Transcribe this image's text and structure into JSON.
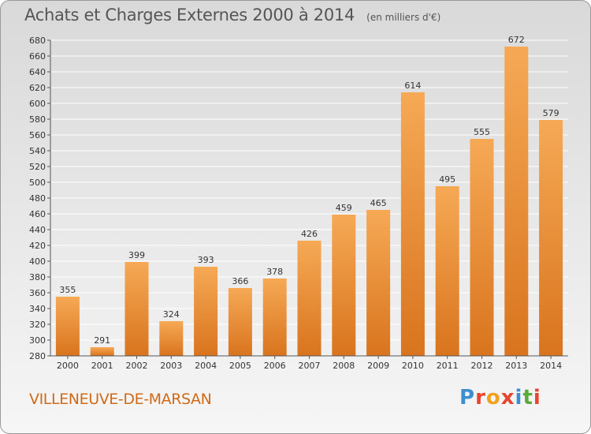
{
  "header": {
    "title": "Achats et Charges Externes 2000 à 2014",
    "subtitle": "(en milliers d'€)"
  },
  "footer": {
    "commune": "VILLENEUVE-DE-MARSAN",
    "brand": "Proxiti",
    "brand_colors": [
      "#3c8fd0",
      "#e8452e",
      "#f2a11e",
      "#e8452e",
      "#3c8fd0",
      "#5aaa3a",
      "#e8452e"
    ]
  },
  "colors": {
    "bar_light": "#f6a955",
    "bar_dark": "#d9741e",
    "grid": "#ffffff",
    "axis": "#555555"
  },
  "chart_data": {
    "type": "bar",
    "title": "Achats et Charges Externes 2000 à 2014",
    "subtitle": "(en milliers d'€)",
    "categories": [
      "2000",
      "2001",
      "2002",
      "2003",
      "2004",
      "2005",
      "2006",
      "2007",
      "2008",
      "2009",
      "2010",
      "2011",
      "2012",
      "2013",
      "2014"
    ],
    "values": [
      355,
      291,
      399,
      324,
      393,
      366,
      378,
      426,
      459,
      465,
      614,
      495,
      555,
      672,
      579
    ],
    "ylim": [
      280,
      680
    ],
    "yticks": [
      280,
      300,
      320,
      340,
      360,
      380,
      400,
      420,
      440,
      460,
      480,
      500,
      520,
      540,
      560,
      580,
      600,
      620,
      640,
      660,
      680
    ],
    "xlabel": "",
    "ylabel": "",
    "grid": true,
    "legend": "none"
  }
}
